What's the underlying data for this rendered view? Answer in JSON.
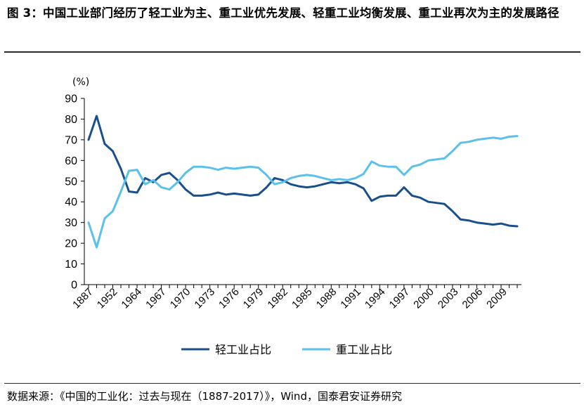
{
  "title": "图 3：中国工业部门经历了轻工业为主、重工业优先发展、轻重工业均衡发展、重工业再次为主的发展路径",
  "source": "数据来源：《中国的工业化：过去与现在（1887-2017）》，Wind，国泰君安证券研究",
  "chart_data": {
    "type": "line",
    "title": "",
    "ylabel": "(%)",
    "xlabel": "",
    "ylim": [
      0,
      90
    ],
    "yticks": [
      0,
      10,
      20,
      30,
      40,
      50,
      60,
      70,
      80,
      90
    ],
    "xtick_labels": [
      "1887",
      "1952",
      "1964",
      "1967",
      "1970",
      "1973",
      "1976",
      "1979",
      "1982",
      "1985",
      "1988",
      "1991",
      "1994",
      "1997",
      "2000",
      "2003",
      "2006",
      "2009"
    ],
    "series": [
      {
        "name": "轻工业占比",
        "color": "#1a4f8b",
        "values": [
          70,
          81.5,
          68,
          64.5,
          56,
          45,
          44.5,
          51.5,
          49.5,
          53,
          54,
          50.5,
          46,
          43,
          43,
          43.5,
          44.5,
          43.5,
          44,
          43.5,
          43,
          43.5,
          47,
          51.5,
          50.5,
          48.5,
          47.5,
          47,
          47.5,
          48.5,
          49.5,
          49,
          49.5,
          48.5,
          46.5,
          40.5,
          42.5,
          43,
          43,
          47,
          43,
          42,
          40,
          39.5,
          39,
          35.5,
          31.5,
          31,
          30,
          29.5,
          29,
          29.5,
          28.5,
          28.2
        ]
      },
      {
        "name": "重工业占比",
        "color": "#5bc0eb",
        "values": [
          30,
          18,
          32,
          35.5,
          45,
          55,
          55.5,
          48.5,
          50.5,
          47,
          46,
          49.5,
          54,
          57,
          57,
          56.5,
          55.5,
          56.5,
          56,
          56.5,
          57,
          56.5,
          53,
          48.5,
          49.5,
          51.5,
          52.5,
          53,
          52.5,
          51.5,
          50.5,
          51,
          50.5,
          51.5,
          53.5,
          59.5,
          57.5,
          57,
          57,
          53,
          57,
          58,
          60,
          60.5,
          61,
          64.5,
          68.5,
          69,
          70,
          70.5,
          71,
          70.5,
          71.5,
          71.8
        ]
      }
    ],
    "legend": "bottom"
  }
}
